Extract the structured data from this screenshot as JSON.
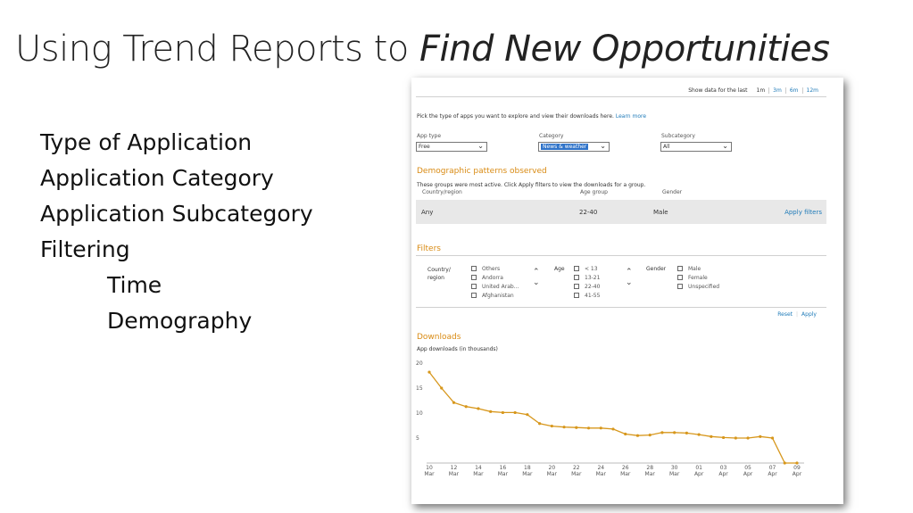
{
  "slide": {
    "title_plain": "Using Trend Reports to ",
    "title_emphasis": "Find New Opportunities",
    "bullets": [
      "Type of Application",
      "Application Category",
      "Application Subcategory",
      "Filtering"
    ],
    "sub_bullets": [
      "Time",
      "Demography"
    ]
  },
  "app": {
    "range": {
      "label": "Show data for the last",
      "options": [
        "1m",
        "3m",
        "6m",
        "12m"
      ]
    },
    "intro_text": "Pick the type of apps you want to explore and view their downloads here.",
    "learn_more": "Learn more",
    "app_type": {
      "label": "App type",
      "value": "Free"
    },
    "category": {
      "label": "Category",
      "value": "News & weather"
    },
    "subcategory": {
      "label": "Subcategory",
      "value": "All"
    },
    "demographic": {
      "title": "Demographic patterns observed",
      "description": "These groups were most active. Click Apply filters to view the downloads for a group.",
      "columns": [
        "Country/region",
        "Age group",
        "Gender"
      ],
      "row": {
        "country": "Any",
        "age": "22-40",
        "gender": "Male"
      },
      "apply_filters": "Apply filters"
    },
    "filters": {
      "title": "Filters",
      "country_label_1": "Country/",
      "country_label_2": "region",
      "countries": [
        "Others",
        "Andorra",
        "United Arab...",
        "Afghanistan"
      ],
      "age_label": "Age",
      "ages": [
        "< 13",
        "13-21",
        "22-40",
        "41-55"
      ],
      "gender_label": "Gender",
      "genders": [
        "Male",
        "Female",
        "Unspecified"
      ],
      "reset": "Reset",
      "apply": "Apply"
    },
    "downloads": {
      "title": "Downloads",
      "subtitle": "App downloads (in thousands)"
    }
  },
  "chart_data": {
    "type": "line",
    "title": "Downloads",
    "ylabel": "App downloads (in thousands)",
    "xlabel": "",
    "ylim": [
      0,
      20
    ],
    "y_ticks": [
      5,
      10,
      15,
      20
    ],
    "x_ticks": [
      {
        "day": "10",
        "month": "Mar"
      },
      {
        "day": "12",
        "month": "Mar"
      },
      {
        "day": "14",
        "month": "Mar"
      },
      {
        "day": "16",
        "month": "Mar"
      },
      {
        "day": "18",
        "month": "Mar"
      },
      {
        "day": "20",
        "month": "Mar"
      },
      {
        "day": "22",
        "month": "Mar"
      },
      {
        "day": "24",
        "month": "Mar"
      },
      {
        "day": "26",
        "month": "Mar"
      },
      {
        "day": "28",
        "month": "Mar"
      },
      {
        "day": "30",
        "month": "Mar"
      },
      {
        "day": "01",
        "month": "Apr"
      },
      {
        "day": "03",
        "month": "Apr"
      },
      {
        "day": "05",
        "month": "Apr"
      },
      {
        "day": "07",
        "month": "Apr"
      },
      {
        "day": "09",
        "month": "Apr"
      }
    ],
    "x": [
      "10 Mar",
      "11 Mar",
      "12 Mar",
      "13 Mar",
      "14 Mar",
      "15 Mar",
      "16 Mar",
      "17 Mar",
      "18 Mar",
      "19 Mar",
      "20 Mar",
      "21 Mar",
      "22 Mar",
      "23 Mar",
      "24 Mar",
      "25 Mar",
      "26 Mar",
      "27 Mar",
      "28 Mar",
      "29 Mar",
      "30 Mar",
      "31 Mar",
      "01 Apr",
      "02 Apr",
      "03 Apr",
      "04 Apr",
      "05 Apr",
      "06 Apr",
      "07 Apr",
      "08 Apr",
      "09 Apr"
    ],
    "values": [
      18.2,
      15.0,
      12.1,
      11.3,
      10.9,
      10.3,
      10.1,
      10.1,
      9.7,
      7.9,
      7.4,
      7.2,
      7.1,
      7.0,
      7.0,
      6.8,
      5.8,
      5.5,
      5.6,
      6.1,
      6.1,
      6.0,
      5.7,
      5.3,
      5.1,
      5.0,
      5.0,
      5.3,
      5.0,
      0.0,
      0.0
    ],
    "color": "#d7971c"
  }
}
